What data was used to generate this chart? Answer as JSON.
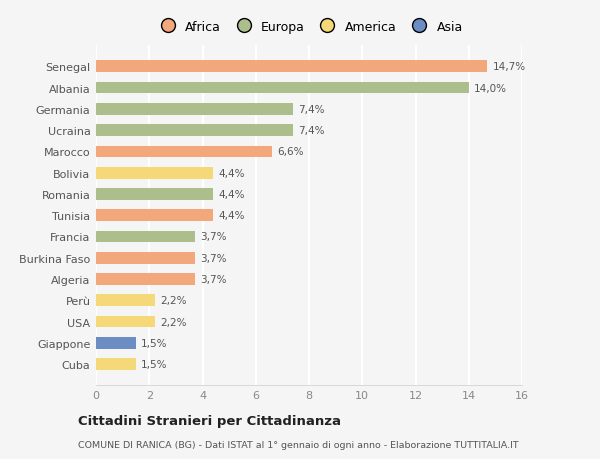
{
  "countries": [
    "Senegal",
    "Albania",
    "Germania",
    "Ucraina",
    "Marocco",
    "Bolivia",
    "Romania",
    "Tunisia",
    "Francia",
    "Burkina Faso",
    "Algeria",
    "Perù",
    "USA",
    "Giappone",
    "Cuba"
  ],
  "values": [
    14.7,
    14.0,
    7.4,
    7.4,
    6.6,
    4.4,
    4.4,
    4.4,
    3.7,
    3.7,
    3.7,
    2.2,
    2.2,
    1.5,
    1.5
  ],
  "continents": [
    "Africa",
    "Europa",
    "Europa",
    "Europa",
    "Africa",
    "America",
    "Europa",
    "Africa",
    "Europa",
    "Africa",
    "Africa",
    "America",
    "America",
    "Asia",
    "America"
  ],
  "labels": [
    "14,7%",
    "14,0%",
    "7,4%",
    "7,4%",
    "6,6%",
    "4,4%",
    "4,4%",
    "4,4%",
    "3,7%",
    "3,7%",
    "3,7%",
    "2,2%",
    "2,2%",
    "1,5%",
    "1,5%"
  ],
  "colors": {
    "Africa": "#F2A87A",
    "Europa": "#ABBE8C",
    "America": "#F5D878",
    "Asia": "#6B8DC4"
  },
  "legend_labels": [
    "Africa",
    "Europa",
    "America",
    "Asia"
  ],
  "legend_colors": [
    "#F2A87A",
    "#ABBE8C",
    "#F5D878",
    "#6B8DC4"
  ],
  "title": "Cittadini Stranieri per Cittadinanza",
  "subtitle": "COMUNE DI RANICA (BG) - Dati ISTAT al 1° gennaio di ogni anno - Elaborazione TUTTITALIA.IT",
  "xlim": [
    0,
    16
  ],
  "xticks": [
    0,
    2,
    4,
    6,
    8,
    10,
    12,
    14,
    16
  ],
  "background_color": "#f5f5f5",
  "grid_color": "#ffffff",
  "label_color": "#555555",
  "tick_color": "#888888"
}
